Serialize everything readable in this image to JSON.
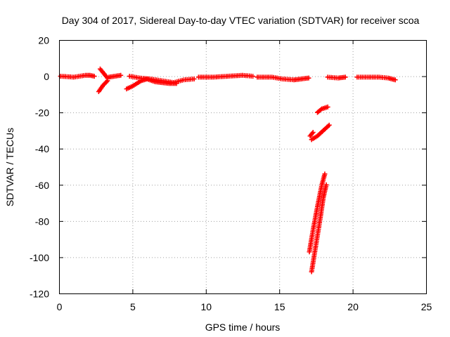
{
  "chart_data": {
    "type": "scatter",
    "title": "Day 304 of 2017, Sidereal Day-to-day VTEC variation (SDTVAR) for receiver scoa",
    "xlabel": "GPS time / hours",
    "ylabel": "SDTVAR / TECUs",
    "xlim": [
      0,
      25
    ],
    "ylim": [
      -120,
      20
    ],
    "xticks": [
      "0",
      "5",
      "10",
      "15",
      "20",
      "25"
    ],
    "yticks": [
      "20",
      "0",
      "-20",
      "-40",
      "-60",
      "-80",
      "-100",
      "-120"
    ],
    "grid": true,
    "marker": "plus",
    "series_color": "#ff0000",
    "series": [
      {
        "name": "SDTVAR",
        "segments": [
          [
            [
              0.1,
              0
            ],
            [
              1.0,
              -0.5
            ],
            [
              1.8,
              0.5
            ],
            [
              2.1,
              0.5
            ],
            [
              2.4,
              0
            ]
          ],
          [
            [
              2.7,
              -8.5
            ],
            [
              3.0,
              -5
            ],
            [
              3.3,
              -2.5
            ]
          ],
          [
            [
              2.8,
              4
            ],
            [
              3.0,
              2
            ],
            [
              3.3,
              -1
            ]
          ],
          [
            [
              3.4,
              -0.5
            ],
            [
              3.8,
              0
            ],
            [
              4.2,
              0.5
            ]
          ],
          [
            [
              4.6,
              -7
            ],
            [
              5.0,
              -5.5
            ],
            [
              5.6,
              -2.5
            ],
            [
              6.0,
              -1.5
            ],
            [
              6.5,
              -3
            ],
            [
              7.0,
              -3.5
            ],
            [
              7.5,
              -4
            ],
            [
              8.0,
              -4
            ]
          ],
          [
            [
              4.8,
              0
            ],
            [
              5.5,
              -1
            ],
            [
              6.2,
              -1.5
            ],
            [
              7.0,
              -2.5
            ],
            [
              7.8,
              -3.5
            ],
            [
              8.5,
              -2
            ],
            [
              9.2,
              -1.5
            ]
          ],
          [
            [
              9.5,
              -0.5
            ],
            [
              10.5,
              -0.5
            ],
            [
              11.5,
              0
            ],
            [
              12.5,
              0.5
            ],
            [
              13.2,
              0
            ]
          ],
          [
            [
              13.5,
              -0.5
            ],
            [
              14.5,
              -0.5
            ],
            [
              15.2,
              -1.5
            ],
            [
              16.0,
              -2
            ],
            [
              16.5,
              -1.5
            ],
            [
              17.0,
              -1
            ]
          ],
          [
            [
              18.3,
              -0.5
            ],
            [
              19.0,
              -1
            ],
            [
              19.5,
              -0.5
            ]
          ],
          [
            [
              20.3,
              -0.5
            ],
            [
              21.0,
              -0.5
            ],
            [
              21.8,
              -0.5
            ],
            [
              22.4,
              -1
            ],
            [
              22.9,
              -2
            ]
          ],
          [
            [
              17.1,
              -33
            ],
            [
              17.3,
              -31
            ]
          ],
          [
            [
              17.2,
              -35
            ],
            [
              17.6,
              -33
            ],
            [
              18.0,
              -30
            ],
            [
              18.4,
              -27
            ]
          ],
          [
            [
              17.6,
              -20
            ],
            [
              17.9,
              -18
            ],
            [
              18.3,
              -17
            ]
          ],
          [
            [
              17.05,
              -97
            ],
            [
              17.3,
              -85
            ],
            [
              17.6,
              -72
            ],
            [
              17.9,
              -60
            ],
            [
              18.1,
              -54
            ]
          ],
          [
            [
              17.2,
              -108
            ],
            [
              17.5,
              -93
            ],
            [
              17.8,
              -78
            ],
            [
              18.0,
              -67
            ],
            [
              18.2,
              -60
            ]
          ]
        ]
      }
    ]
  }
}
